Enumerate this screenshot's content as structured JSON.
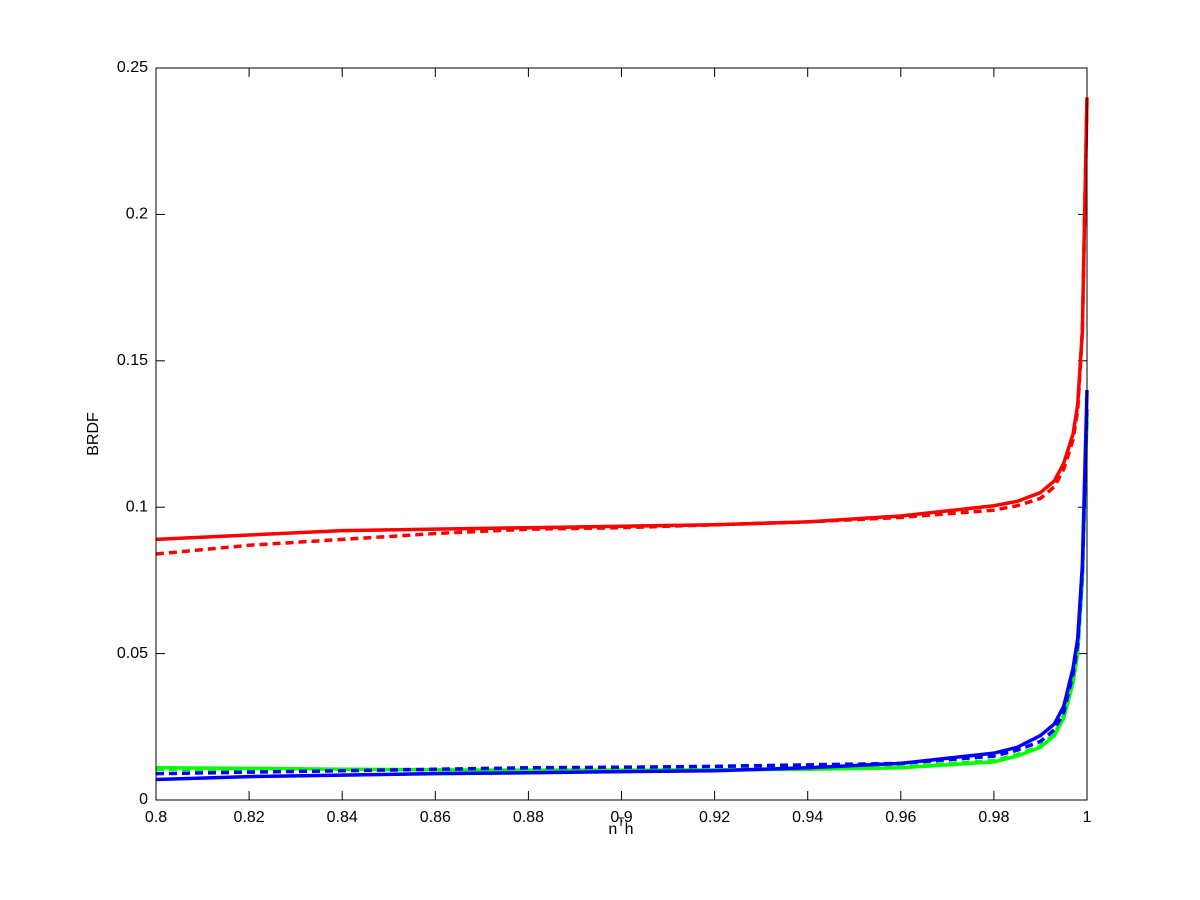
{
  "chart_data": {
    "type": "line",
    "xlabel": {
      "base": "n",
      "sup": "T",
      "tail": "h"
    },
    "ylabel": "BRDF",
    "x": [
      0.8,
      0.82,
      0.84,
      0.86,
      0.88,
      0.9,
      0.92,
      0.94,
      0.96,
      0.98,
      0.985,
      0.99,
      0.993,
      0.995,
      0.997,
      0.998,
      0.999,
      1.0
    ],
    "series": [
      {
        "color": "#ff0000",
        "dashed": false,
        "values": [
          0.089,
          0.0905,
          0.092,
          0.0925,
          0.093,
          0.0935,
          0.094,
          0.095,
          0.097,
          0.1005,
          0.102,
          0.105,
          0.109,
          0.115,
          0.125,
          0.135,
          0.16,
          0.24
        ]
      },
      {
        "color": "#ff0000",
        "dashed": true,
        "values": [
          0.084,
          0.087,
          0.089,
          0.091,
          0.0925,
          0.093,
          0.094,
          0.095,
          0.0965,
          0.099,
          0.1005,
          0.103,
          0.107,
          0.113,
          0.123,
          0.133,
          0.16,
          0.24
        ]
      },
      {
        "color": "#00ff00",
        "dashed": false,
        "values": [
          0.011,
          0.0108,
          0.0105,
          0.0103,
          0.0102,
          0.0102,
          0.0103,
          0.0105,
          0.011,
          0.013,
          0.015,
          0.018,
          0.022,
          0.028,
          0.04,
          0.05,
          0.075,
          0.13
        ]
      },
      {
        "color": "#00ff00",
        "dashed": true,
        "values": [
          0.0105,
          0.0105,
          0.0104,
          0.0104,
          0.0104,
          0.0105,
          0.0106,
          0.0108,
          0.0113,
          0.0135,
          0.0155,
          0.0185,
          0.0225,
          0.029,
          0.041,
          0.051,
          0.076,
          0.132
        ]
      },
      {
        "color": "#0000ff",
        "dashed": false,
        "values": [
          0.007,
          0.008,
          0.0085,
          0.009,
          0.0093,
          0.0097,
          0.01,
          0.011,
          0.0125,
          0.016,
          0.018,
          0.022,
          0.026,
          0.032,
          0.045,
          0.055,
          0.08,
          0.14
        ]
      },
      {
        "color": "#0000ff",
        "dashed": true,
        "values": [
          0.009,
          0.0095,
          0.01,
          0.0105,
          0.011,
          0.0112,
          0.0115,
          0.012,
          0.0125,
          0.015,
          0.017,
          0.02,
          0.024,
          0.03,
          0.043,
          0.053,
          0.078,
          0.135
        ]
      }
    ],
    "xlim": [
      0.8,
      1
    ],
    "xticks": [
      0.8,
      0.82,
      0.84,
      0.86,
      0.88,
      0.9,
      0.92,
      0.94,
      0.96,
      0.98,
      1
    ],
    "ylim": [
      0,
      0.25
    ],
    "yticks": [
      0,
      0.05,
      0.1,
      0.15,
      0.2,
      0.25
    ],
    "grid": false
  }
}
